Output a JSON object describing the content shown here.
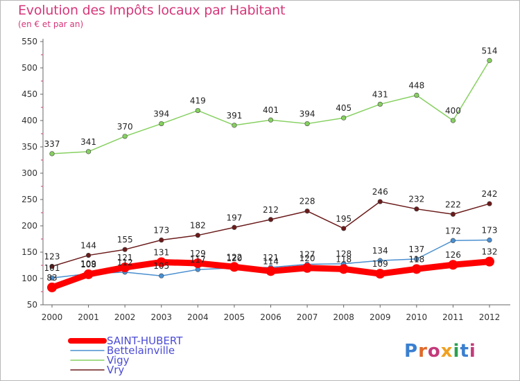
{
  "title": "Evolution des Impôts locaux par Habitant",
  "subtitle": "(en € et par an)",
  "logo_text": "Proxiti",
  "chart_data": {
    "type": "line",
    "title": "Evolution des Impôts locaux par Habitant",
    "subtitle": "(en € et par an)",
    "xlabel": "",
    "ylabel": "",
    "x": [
      "2000",
      "2001",
      "2002",
      "2003",
      "2004",
      "2005",
      "2006",
      "2007",
      "2008",
      "2009",
      "2010",
      "2011",
      "2012"
    ],
    "ylim": [
      50,
      550
    ],
    "yticks": [
      50,
      100,
      150,
      200,
      250,
      300,
      350,
      400,
      450,
      500,
      550
    ],
    "grid": false,
    "legend_position": "bottom-left",
    "series": [
      {
        "name": "SAINT-HUBERT",
        "color": "#ff0000",
        "values": [
          83,
          108,
          121,
          131,
          129,
          122,
          114,
          120,
          118,
          109,
          118,
          126,
          132
        ],
        "labels": [
          83,
          108,
          121,
          131,
          129,
          122,
          114,
          120,
          118,
          109,
          118,
          126,
          132
        ]
      },
      {
        "name": "Bettelainville",
        "color": "#4a8fd0",
        "values": [
          101,
          109,
          112,
          105,
          117,
          120,
          121,
          127,
          128,
          134,
          137,
          172,
          173
        ],
        "labels": [
          101,
          109,
          112,
          105,
          117,
          120,
          121,
          127,
          128,
          134,
          137,
          172,
          173
        ]
      },
      {
        "name": "Vigy",
        "color": "#86d060",
        "values": [
          337,
          341,
          370,
          394,
          419,
          391,
          401,
          394,
          405,
          431,
          448,
          400,
          514
        ],
        "labels": [
          337,
          341,
          370,
          394,
          419,
          391,
          401,
          394,
          405,
          431,
          448,
          400,
          514
        ]
      },
      {
        "name": "Vry",
        "color": "#6b1a1a",
        "values": [
          123,
          144,
          155,
          173,
          182,
          197,
          212,
          228,
          195,
          246,
          232,
          222,
          242
        ],
        "labels": [
          123,
          144,
          155,
          173,
          182,
          197,
          212,
          228,
          195,
          246,
          232,
          222,
          242
        ]
      }
    ]
  }
}
